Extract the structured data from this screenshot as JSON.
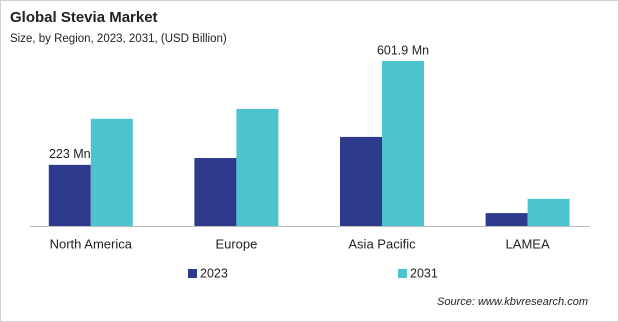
{
  "chart_data": {
    "type": "bar",
    "title": "Global Stevia Market",
    "subtitle": "Size, by Region, 2023, 2031, (USD Billion)",
    "source": "Source: www.kbvresearch.com",
    "categories": [
      "North America",
      "Europe",
      "Asia Pacific",
      "LAMEA"
    ],
    "series": [
      {
        "name": "2023",
        "color": "#2e3a8c",
        "values": [
          223,
          248,
          325,
          47
        ],
        "value_labels": [
          "223 Mn",
          null,
          null,
          null
        ]
      },
      {
        "name": "2031",
        "color": "#4bc4cf",
        "values": [
          391,
          427,
          601.9,
          99
        ],
        "value_labels": [
          null,
          null,
          "601.9 Mn",
          null
        ]
      }
    ],
    "legend": "bottom"
  }
}
